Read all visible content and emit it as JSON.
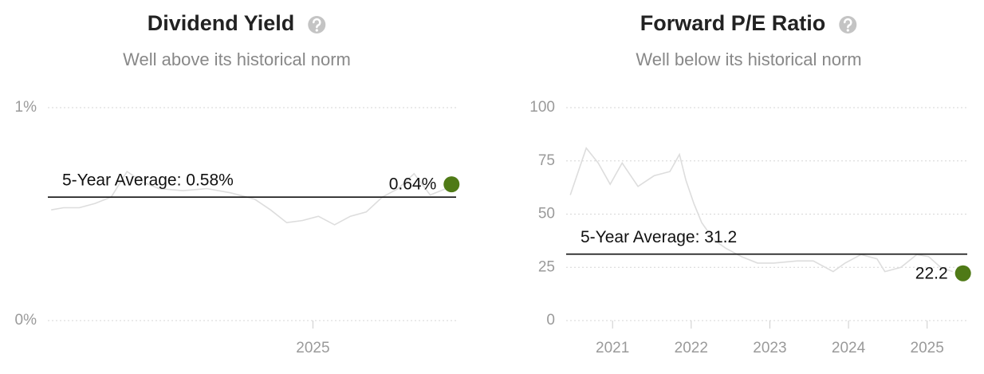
{
  "chart_data": [
    {
      "type": "line",
      "title": "Dividend Yield",
      "subtitle": "Well above its historical norm",
      "x": [
        2024.141,
        2024.181,
        2024.233,
        2024.285,
        2024.338,
        2024.39,
        2024.442,
        2024.495,
        2024.573,
        2024.652,
        2024.73,
        2024.809,
        2024.861,
        2024.914,
        2024.966,
        2025.018,
        2025.071,
        2025.123,
        2025.175,
        2025.228,
        2025.28,
        2025.332,
        2025.385,
        2025.437
      ],
      "series": [
        {
          "color": "#dddddd",
          "values": [
            0.52,
            0.53,
            0.53,
            0.55,
            0.58,
            0.7,
            0.65,
            0.62,
            0.61,
            0.62,
            0.6,
            0.57,
            0.52,
            0.46,
            0.47,
            0.49,
            0.45,
            0.49,
            0.51,
            0.58,
            0.62,
            0.69,
            0.59,
            0.62
          ]
        }
      ],
      "reference": {
        "value": 0.58,
        "label": "5-Year Average: 0.58%"
      },
      "current": {
        "x": 2025.455,
        "value": 0.64,
        "value_label": "0.64%",
        "color": "#4f7a16"
      },
      "xlim": [
        2024.13,
        2025.47
      ],
      "xticks": [
        2025
      ],
      "ylim": [
        0,
        1
      ],
      "yticks": [
        {
          "value": 0,
          "label": "0%"
        },
        {
          "value": 1,
          "label": "1%"
        }
      ],
      "grid": true
    },
    {
      "type": "line",
      "title": "Forward P/E Ratio",
      "subtitle": "Well below its historical norm",
      "x": [
        2020.463,
        2020.666,
        2020.818,
        2020.97,
        2021.122,
        2021.324,
        2021.527,
        2021.729,
        2021.851,
        2021.932,
        2022.033,
        2022.134,
        2022.286,
        2022.438,
        2022.641,
        2022.843,
        2023.046,
        2023.349,
        2023.552,
        2023.805,
        2023.957,
        2024.159,
        2024.362,
        2024.463,
        2024.666,
        2024.868,
        2025.02,
        2025.172,
        2025.324
      ],
      "series": [
        {
          "color": "#dddddd",
          "values": [
            59,
            81,
            74,
            64,
            74,
            63,
            68,
            70,
            78,
            66,
            55,
            46,
            38,
            34,
            30,
            27,
            27,
            28,
            28,
            23,
            27,
            31,
            29,
            23,
            25,
            31,
            30,
            25,
            23
          ]
        }
      ],
      "reference": {
        "value": 31.2,
        "label": "5-Year Average: 31.2"
      },
      "current": {
        "x": 2025.456,
        "value": 22.2,
        "color": "#4f7a16"
      },
      "xlim": [
        2020.41,
        2025.51
      ],
      "xticks": [
        2021,
        2022,
        2023,
        2024,
        2025
      ],
      "ylim": [
        0,
        100
      ],
      "yticks": [
        0,
        25,
        50,
        75,
        100
      ],
      "grid": true
    }
  ]
}
